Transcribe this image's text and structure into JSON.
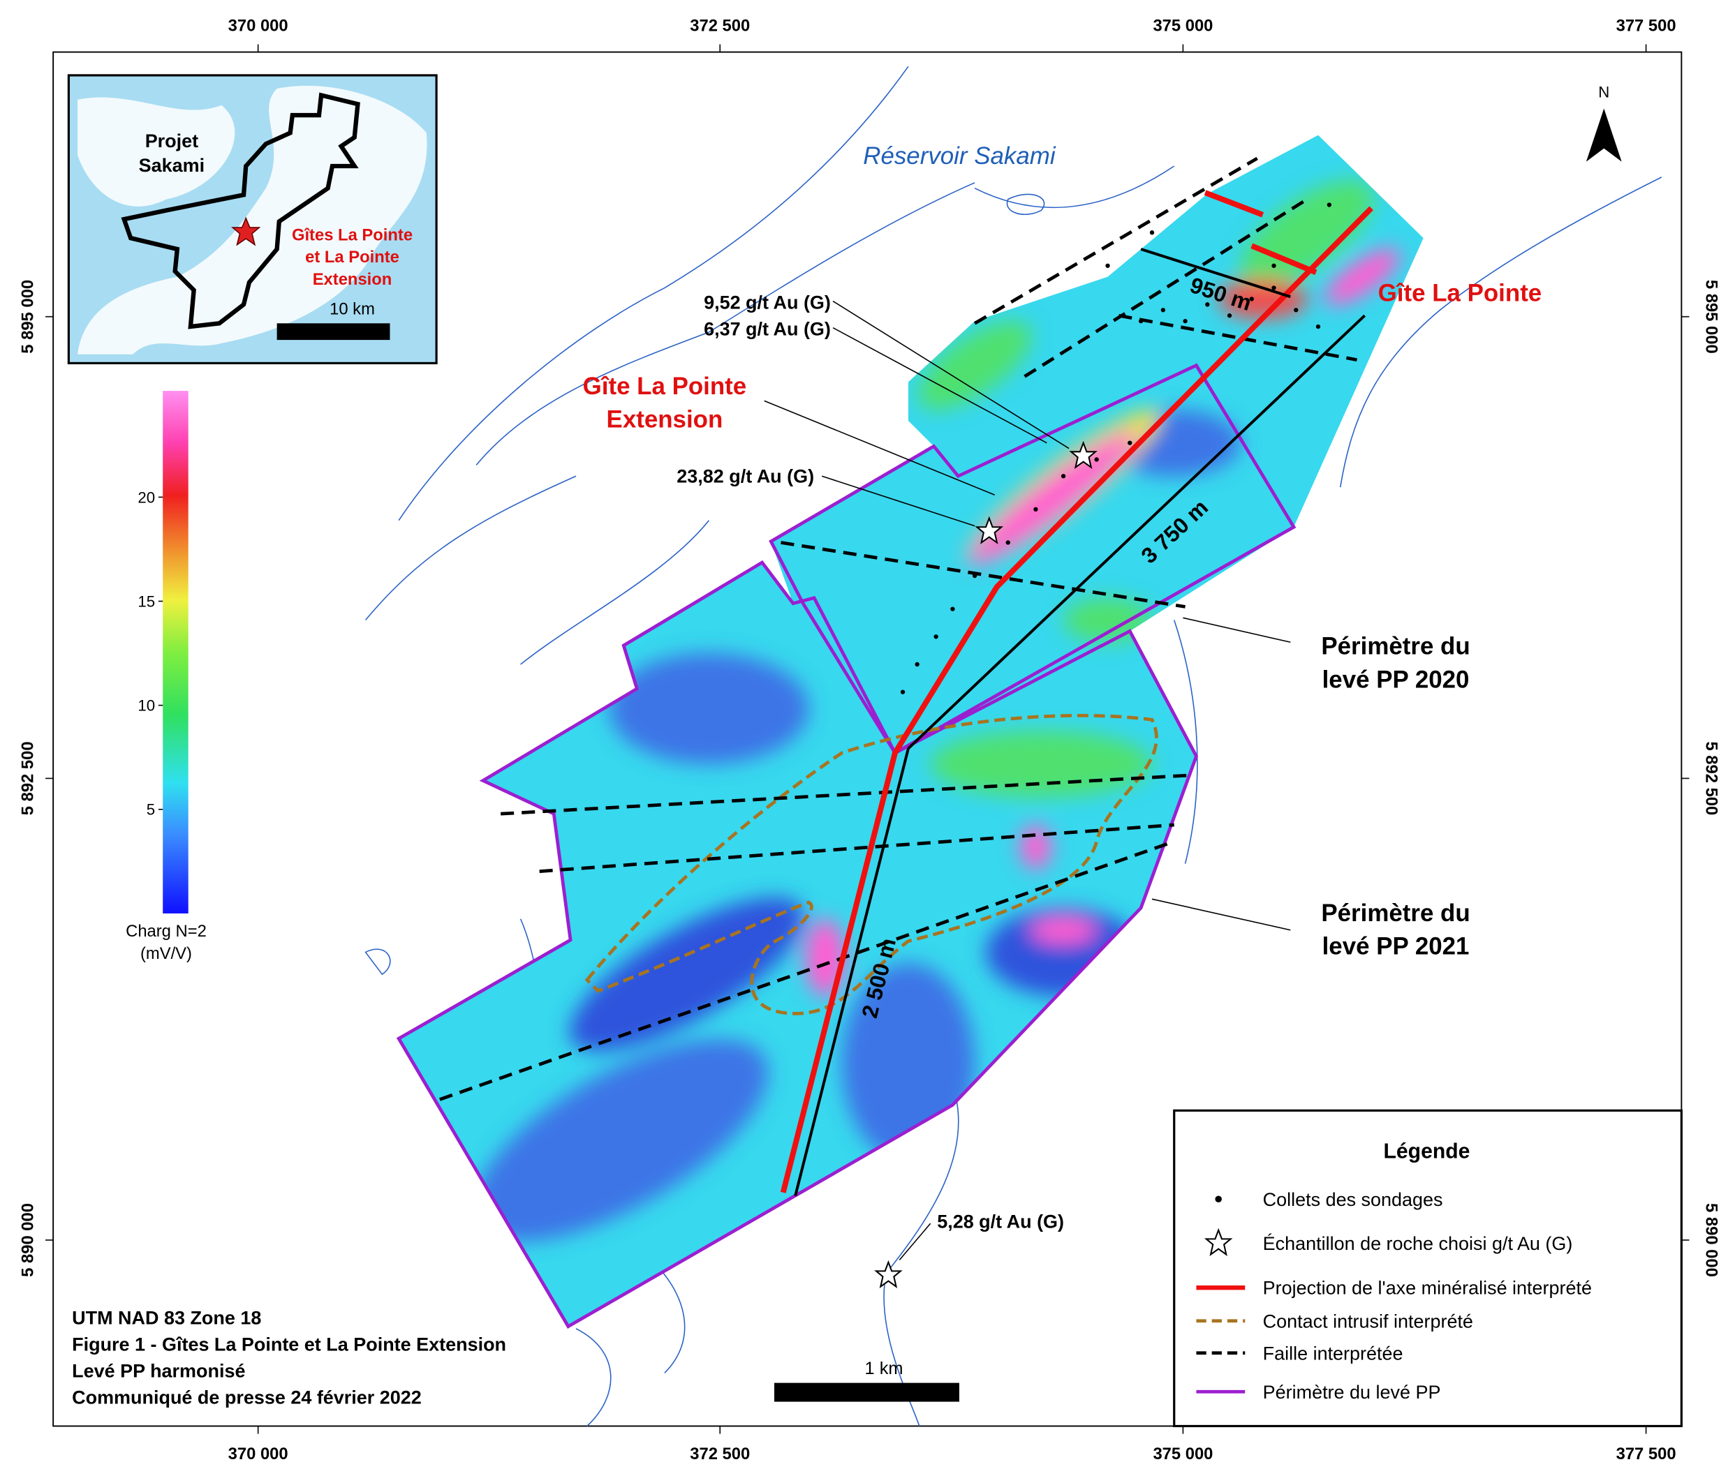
{
  "easting": [
    "370 000",
    "372 500",
    "375 000",
    "377 500"
  ],
  "northing": [
    "5 895 000",
    "5 892 500",
    "5 890 000"
  ],
  "inset": {
    "title": [
      "Projet",
      "Sakami"
    ],
    "deposits": [
      "Gîtes La Pointe",
      "et La Pointe",
      "Extension"
    ],
    "scale": "10 km"
  },
  "north": "N",
  "water_label": "Réservoir Sakami",
  "colorbar": {
    "ticks": [
      5,
      10,
      15,
      20
    ],
    "label": [
      "Charg N=2",
      "(mV/V)"
    ]
  },
  "annotations": {
    "sample_1": [
      "9,52 g/t Au (G)",
      "6,37 g/t Au (G)"
    ],
    "deposit_extension": [
      "Gîte La Pointe",
      "Extension"
    ],
    "sample_2": "23,82 g/t Au (G)",
    "deposit_main": "Gîte La Pointe",
    "survey_2020": [
      "Périmètre du",
      "levé PP 2020"
    ],
    "survey_2021": [
      "Périmètre du",
      "levé PP 2021"
    ],
    "sample_3": "5,28 g/t Au (G)",
    "distances": [
      "950 m",
      "3 750 m",
      "2 500 m"
    ]
  },
  "legend": {
    "title": "Légende",
    "items": [
      "Collets des sondages",
      "Échantillon de roche choisi g/t Au (G)",
      "Projection de l'axe minéralisé interprété",
      "Contact intrusif interprété",
      "Faille interprétée",
      "Périmètre du levé PP"
    ]
  },
  "title_block": [
    "UTM NAD 83 Zone 18",
    "Figure 1 - Gîtes La Pointe et La Pointe Extension",
    "Levé PP harmonisé",
    "Communiqué de presse 24 février 2022"
  ],
  "scale_bar": "1 km"
}
